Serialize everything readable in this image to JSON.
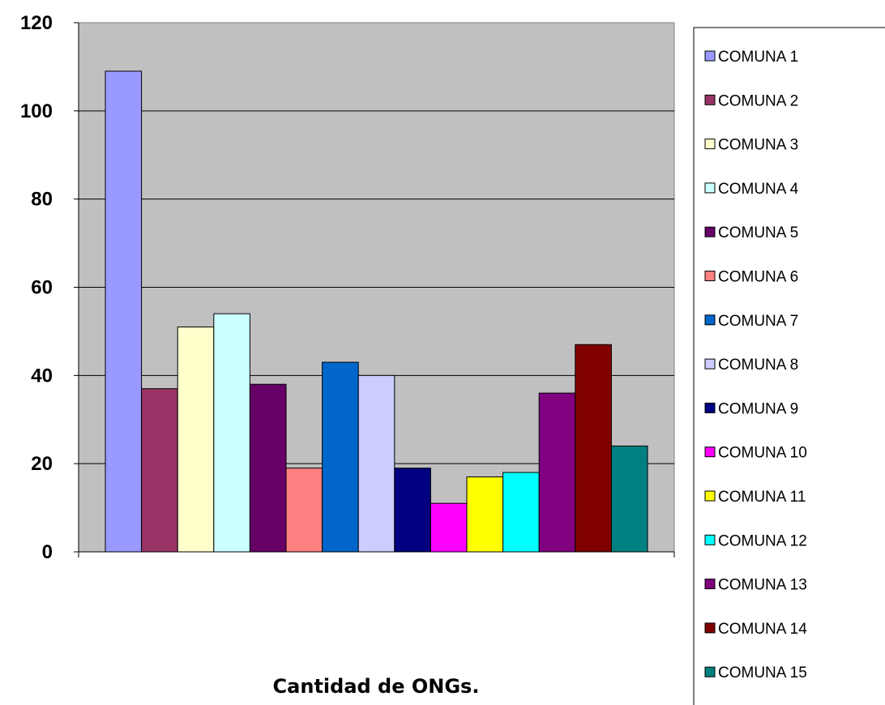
{
  "chart_data": {
    "type": "bar",
    "xlabel": "Cantidad de ONGs.",
    "ylabel": "",
    "ylim": [
      0,
      120
    ],
    "yticks": [
      "0",
      "20",
      "40",
      "60",
      "80",
      "100",
      "120"
    ],
    "grid": true,
    "legend_position": "right",
    "series": [
      {
        "name": "COMUNA 1",
        "value": 109,
        "color": "#9999ff"
      },
      {
        "name": "COMUNA 2",
        "value": 37,
        "color": "#993366"
      },
      {
        "name": "COMUNA 3",
        "value": 51,
        "color": "#ffffcc"
      },
      {
        "name": "COMUNA 4",
        "value": 54,
        "color": "#ccffff"
      },
      {
        "name": "COMUNA 5",
        "value": 38,
        "color": "#660066"
      },
      {
        "name": "COMUNA 6",
        "value": 19,
        "color": "#ff8080"
      },
      {
        "name": "COMUNA 7",
        "value": 43,
        "color": "#0066cc"
      },
      {
        "name": "COMUNA 8",
        "value": 40,
        "color": "#ccccff"
      },
      {
        "name": "COMUNA 9",
        "value": 19,
        "color": "#000080"
      },
      {
        "name": "COMUNA 10",
        "value": 11,
        "color": "#ff00ff"
      },
      {
        "name": "COMUNA 11",
        "value": 17,
        "color": "#ffff00"
      },
      {
        "name": "COMUNA 12",
        "value": 18,
        "color": "#00ffff"
      },
      {
        "name": "COMUNA 13",
        "value": 36,
        "color": "#800080"
      },
      {
        "name": "COMUNA 14",
        "value": 47,
        "color": "#800000"
      },
      {
        "name": "COMUNA 15",
        "value": 24,
        "color": "#008080"
      }
    ],
    "plot_background": "#c0c0c0"
  }
}
